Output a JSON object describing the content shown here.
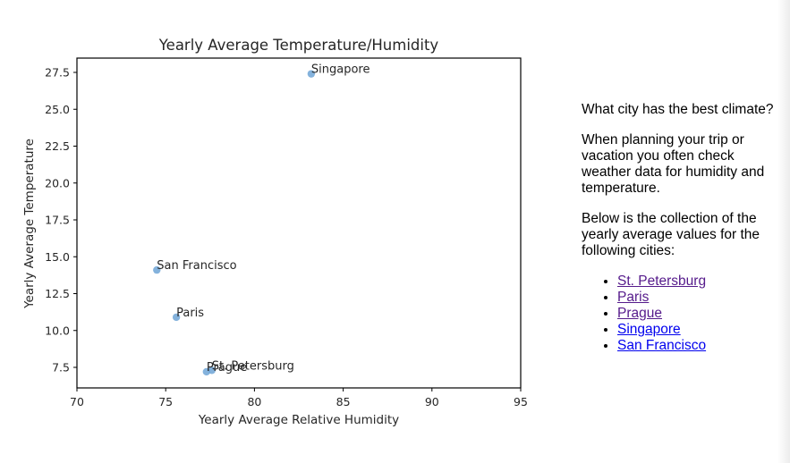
{
  "chart_data": {
    "type": "scatter",
    "title": "Yearly Average Temperature/Humidity",
    "xlabel": "Yearly Average Relative Humidity",
    "ylabel": "Yearly Average Temperature",
    "xlim": [
      70,
      95
    ],
    "ylim": [
      6.1,
      28.5
    ],
    "xticks": [
      "70",
      "75",
      "80",
      "85",
      "90",
      "95"
    ],
    "yticks": [
      "7.5",
      "10.0",
      "12.5",
      "15.0",
      "17.5",
      "20.0",
      "22.5",
      "25.0",
      "27.5"
    ],
    "grid": false,
    "legend": null,
    "marker_color": "#6fa5d6",
    "points": [
      {
        "label": "St. Petersburg",
        "x": 77.6,
        "y": 7.3
      },
      {
        "label": "Paris",
        "x": 75.6,
        "y": 10.9
      },
      {
        "label": "Prague",
        "x": 77.3,
        "y": 7.2
      },
      {
        "label": "Singapore",
        "x": 83.2,
        "y": 27.4
      },
      {
        "label": "San Francisco",
        "x": 74.5,
        "y": 14.1
      }
    ]
  },
  "side": {
    "heading": "What city has the best climate?",
    "intro": "When planning your trip or vacation you often check weather data for humidity and temperature.",
    "lead": "Below is the collection of the yearly average values for the following cities:",
    "links": [
      {
        "label": "St. Petersburg",
        "visited": true
      },
      {
        "label": "Paris",
        "visited": true
      },
      {
        "label": "Prague",
        "visited": true
      },
      {
        "label": "Singapore",
        "visited": false
      },
      {
        "label": "San Francisco",
        "visited": false
      }
    ]
  }
}
